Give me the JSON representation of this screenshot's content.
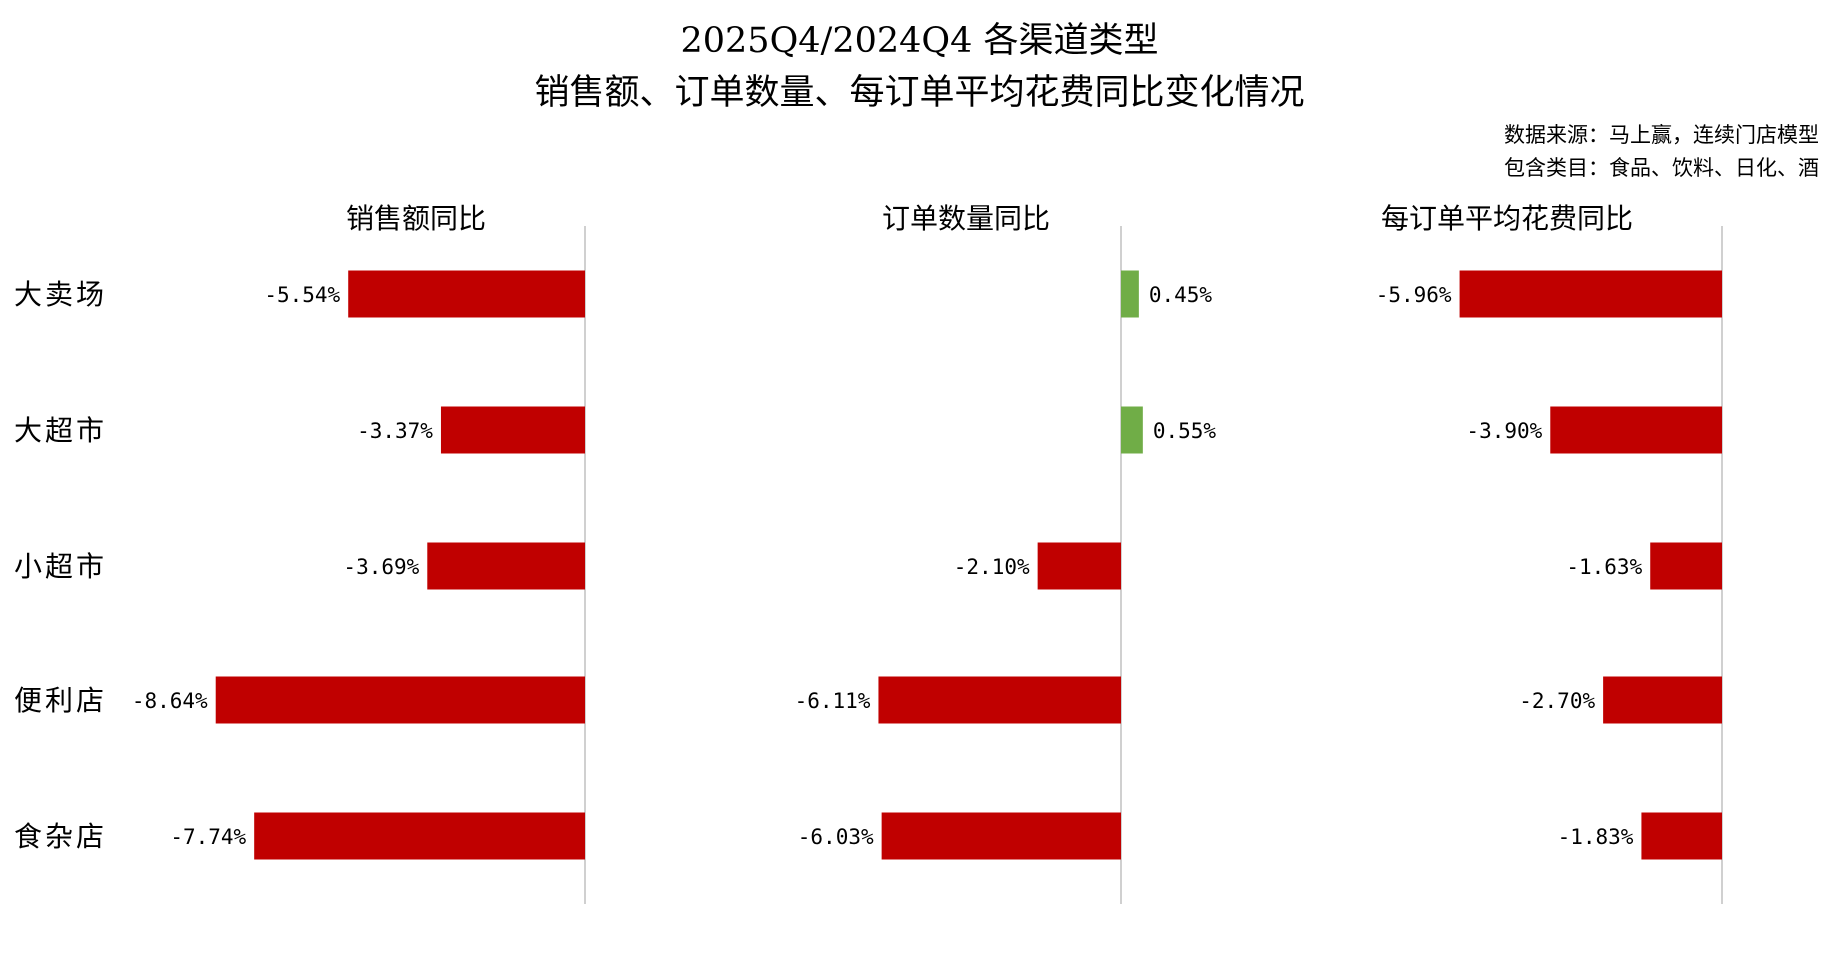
{
  "title_line1": "2025Q4/2024Q4 各渠道类型",
  "title_line2": "销售额、订单数量、每订单平均花费同比变化情况",
  "source_line1": "数据来源：马上赢，连续门店模型",
  "source_line2": "包含类目：食品、饮料、日化、酒",
  "colors": {
    "negative": "#C00000",
    "positive": "#70AD47",
    "axis": "#D0D0D0"
  },
  "chart_data": [
    {
      "type": "bar",
      "orientation": "horizontal",
      "title": "销售额同比",
      "categories": [
        "大卖场",
        "大超市",
        "小超市",
        "便利店",
        "食杂店"
      ],
      "values": [
        -5.54,
        -3.37,
        -3.69,
        -8.64,
        -7.74
      ],
      "labels": [
        "-5.54%",
        "-3.37%",
        "-3.69%",
        "-8.64%",
        "-7.74%"
      ],
      "unit": "%"
    },
    {
      "type": "bar",
      "orientation": "horizontal",
      "title": "订单数量同比",
      "categories": [
        "大卖场",
        "大超市",
        "小超市",
        "便利店",
        "食杂店"
      ],
      "values": [
        0.45,
        0.55,
        -2.1,
        -6.11,
        -6.03
      ],
      "labels": [
        "0.45%",
        "0.55%",
        "-2.10%",
        "-6.11%",
        "-6.03%"
      ],
      "unit": "%"
    },
    {
      "type": "bar",
      "orientation": "horizontal",
      "title": "每订单平均花费同比",
      "categories": [
        "大卖场",
        "大超市",
        "小超市",
        "便利店",
        "食杂店"
      ],
      "values": [
        -5.96,
        -3.9,
        -1.63,
        -2.7,
        -1.83
      ],
      "labels": [
        "-5.96%",
        "-3.90%",
        "-1.63%",
        "-2.70%",
        "-1.83%"
      ],
      "unit": "%"
    }
  ]
}
